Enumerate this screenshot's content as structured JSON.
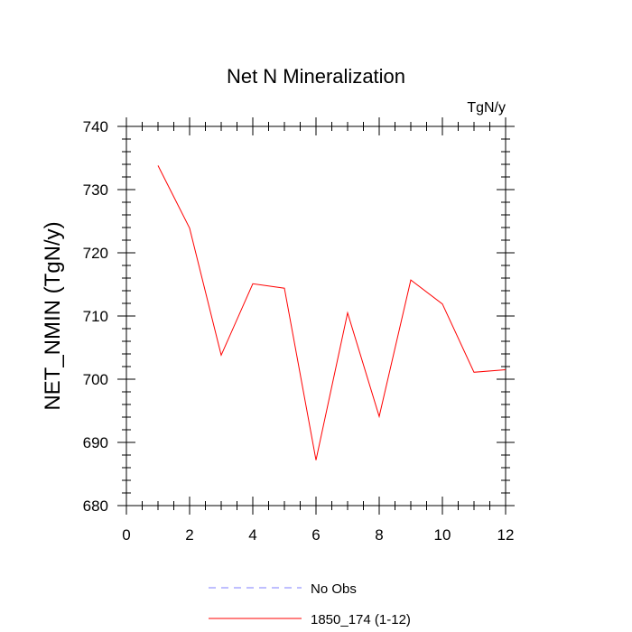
{
  "chart_data": {
    "type": "line",
    "title": "Net N Mineralization",
    "units_label": "TgN/y",
    "xlabel": "",
    "ylabel": "NET_NMIN  (TgN/y)",
    "xlim": [
      0,
      12
    ],
    "ylim": [
      680,
      740
    ],
    "xticks": [
      0,
      2,
      4,
      6,
      8,
      10,
      12
    ],
    "xtick_labels": [
      "0",
      "2",
      "4",
      "6",
      "8",
      "10",
      "12"
    ],
    "yticks": [
      680,
      690,
      700,
      710,
      720,
      730,
      740
    ],
    "ytick_labels": [
      "680",
      "690",
      "700",
      "710",
      "720",
      "730",
      "740"
    ],
    "grid": false,
    "legend_position": "bottom",
    "series": [
      {
        "name": "1850_174 (1-12)",
        "color": "#ff0000",
        "style": "solid",
        "x": [
          1,
          2,
          3,
          4,
          5,
          6,
          7,
          8,
          9,
          10,
          11,
          12
        ],
        "y": [
          733.8,
          723.9,
          703.8,
          715.1,
          714.4,
          687.2,
          710.5,
          694.1,
          715.7,
          711.9,
          701.1,
          701.5
        ]
      }
    ],
    "legend": [
      {
        "label": "No Obs",
        "color": "#7f7fff",
        "style": "dashed"
      },
      {
        "label": "1850_174 (1-12)",
        "color": "#ff0000",
        "style": "solid"
      }
    ]
  }
}
